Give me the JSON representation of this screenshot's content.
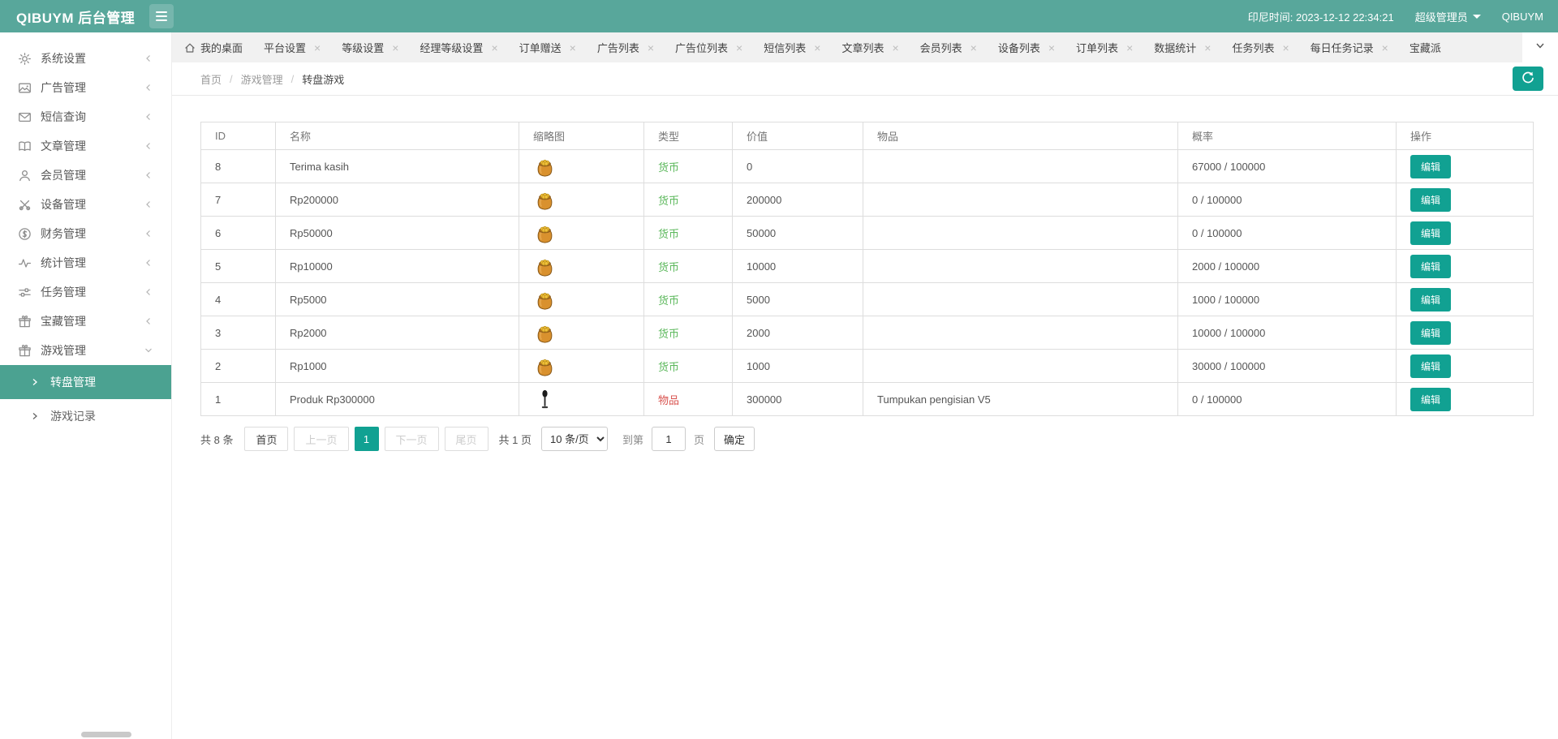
{
  "header": {
    "title": "QIBUYM 后台管理",
    "time": "印尼时间: 2023-12-12 22:34:21",
    "role": "超级管理员",
    "username": "QIBUYM"
  },
  "sidebar": {
    "items": [
      {
        "label": "系统设置",
        "icon": "gear-icon"
      },
      {
        "label": "广告管理",
        "icon": "image-icon"
      },
      {
        "label": "短信查询",
        "icon": "mail-icon"
      },
      {
        "label": "文章管理",
        "icon": "book-icon"
      },
      {
        "label": "会员管理",
        "icon": "user-icon"
      },
      {
        "label": "设备管理",
        "icon": "tools-icon"
      },
      {
        "label": "财务管理",
        "icon": "dollar-icon"
      },
      {
        "label": "统计管理",
        "icon": "pulse-icon"
      },
      {
        "label": "任务管理",
        "icon": "sliders-icon"
      },
      {
        "label": "宝藏管理",
        "icon": "gift-icon"
      },
      {
        "label": "游戏管理",
        "icon": "gift-icon",
        "expanded": true,
        "children": [
          {
            "label": "转盘管理",
            "active": true
          },
          {
            "label": "游戏记录",
            "active": false
          }
        ]
      }
    ]
  },
  "tabs": {
    "close_glyph": "×",
    "items": [
      {
        "label": "我的桌面",
        "home": true,
        "closable": false
      },
      {
        "label": "平台设置",
        "closable": true
      },
      {
        "label": "等级设置",
        "closable": true
      },
      {
        "label": "经理等级设置",
        "closable": true
      },
      {
        "label": "订单赠送",
        "closable": true
      },
      {
        "label": "广告列表",
        "closable": true
      },
      {
        "label": "广告位列表",
        "closable": true
      },
      {
        "label": "短信列表",
        "closable": true
      },
      {
        "label": "文章列表",
        "closable": true
      },
      {
        "label": "会员列表",
        "closable": true
      },
      {
        "label": "设备列表",
        "closable": true
      },
      {
        "label": "订单列表",
        "closable": true
      },
      {
        "label": "数据统计",
        "closable": true
      },
      {
        "label": "任务列表",
        "closable": true
      },
      {
        "label": "每日任务记录",
        "closable": true
      },
      {
        "label": "宝藏派",
        "closable": false
      }
    ]
  },
  "breadcrumb": {
    "separator": "/",
    "items": [
      "首页",
      "游戏管理",
      "转盘游戏"
    ]
  },
  "table": {
    "columns": [
      "ID",
      "名称",
      "缩略图",
      "类型",
      "价值",
      "物品",
      "概率",
      "操作"
    ],
    "edit_label": "编辑",
    "rows": [
      {
        "id": "8",
        "name": "Terima kasih",
        "thumb": "coin-bag",
        "type": "货币",
        "type_color": "#5cb85c",
        "value": "0",
        "item": "",
        "rate": "67000 / 100000"
      },
      {
        "id": "7",
        "name": "Rp200000",
        "thumb": "coin-bag",
        "type": "货币",
        "type_color": "#5cb85c",
        "value": "200000",
        "item": "",
        "rate": "0 / 100000"
      },
      {
        "id": "6",
        "name": "Rp50000",
        "thumb": "coin-bag",
        "type": "货币",
        "type_color": "#5cb85c",
        "value": "50000",
        "item": "",
        "rate": "0 / 100000"
      },
      {
        "id": "5",
        "name": "Rp10000",
        "thumb": "coin-bag",
        "type": "货币",
        "type_color": "#5cb85c",
        "value": "10000",
        "item": "",
        "rate": "2000 / 100000"
      },
      {
        "id": "4",
        "name": "Rp5000",
        "thumb": "coin-bag",
        "type": "货币",
        "type_color": "#5cb85c",
        "value": "5000",
        "item": "",
        "rate": "1000 / 100000"
      },
      {
        "id": "3",
        "name": "Rp2000",
        "thumb": "coin-bag",
        "type": "货币",
        "type_color": "#5cb85c",
        "value": "2000",
        "item": "",
        "rate": "10000 / 100000"
      },
      {
        "id": "2",
        "name": "Rp1000",
        "thumb": "coin-bag",
        "type": "货币",
        "type_color": "#5cb85c",
        "value": "1000",
        "item": "",
        "rate": "30000 / 100000"
      },
      {
        "id": "1",
        "name": "Produk Rp300000",
        "thumb": "microphone",
        "type": "物品",
        "type_color": "#d9534f",
        "value": "300000",
        "item": "Tumpukan pengisian V5",
        "rate": "0 / 100000"
      }
    ]
  },
  "pagination": {
    "total_label": "共 8 条",
    "first": "首页",
    "prev": "上一页",
    "page": "1",
    "next": "下一页",
    "last": "尾页",
    "pages_label": "共 1 页",
    "per_page": "10 条/页",
    "goto_label": "到第",
    "goto_value": "1",
    "page_suffix": "页",
    "confirm": "确定"
  },
  "colors": {
    "header_teal": "#58a79b",
    "accent_teal": "#11a192",
    "submenu_active": "#4ba291",
    "currency_green": "#5cb85c",
    "goods_red": "#d9534f"
  }
}
